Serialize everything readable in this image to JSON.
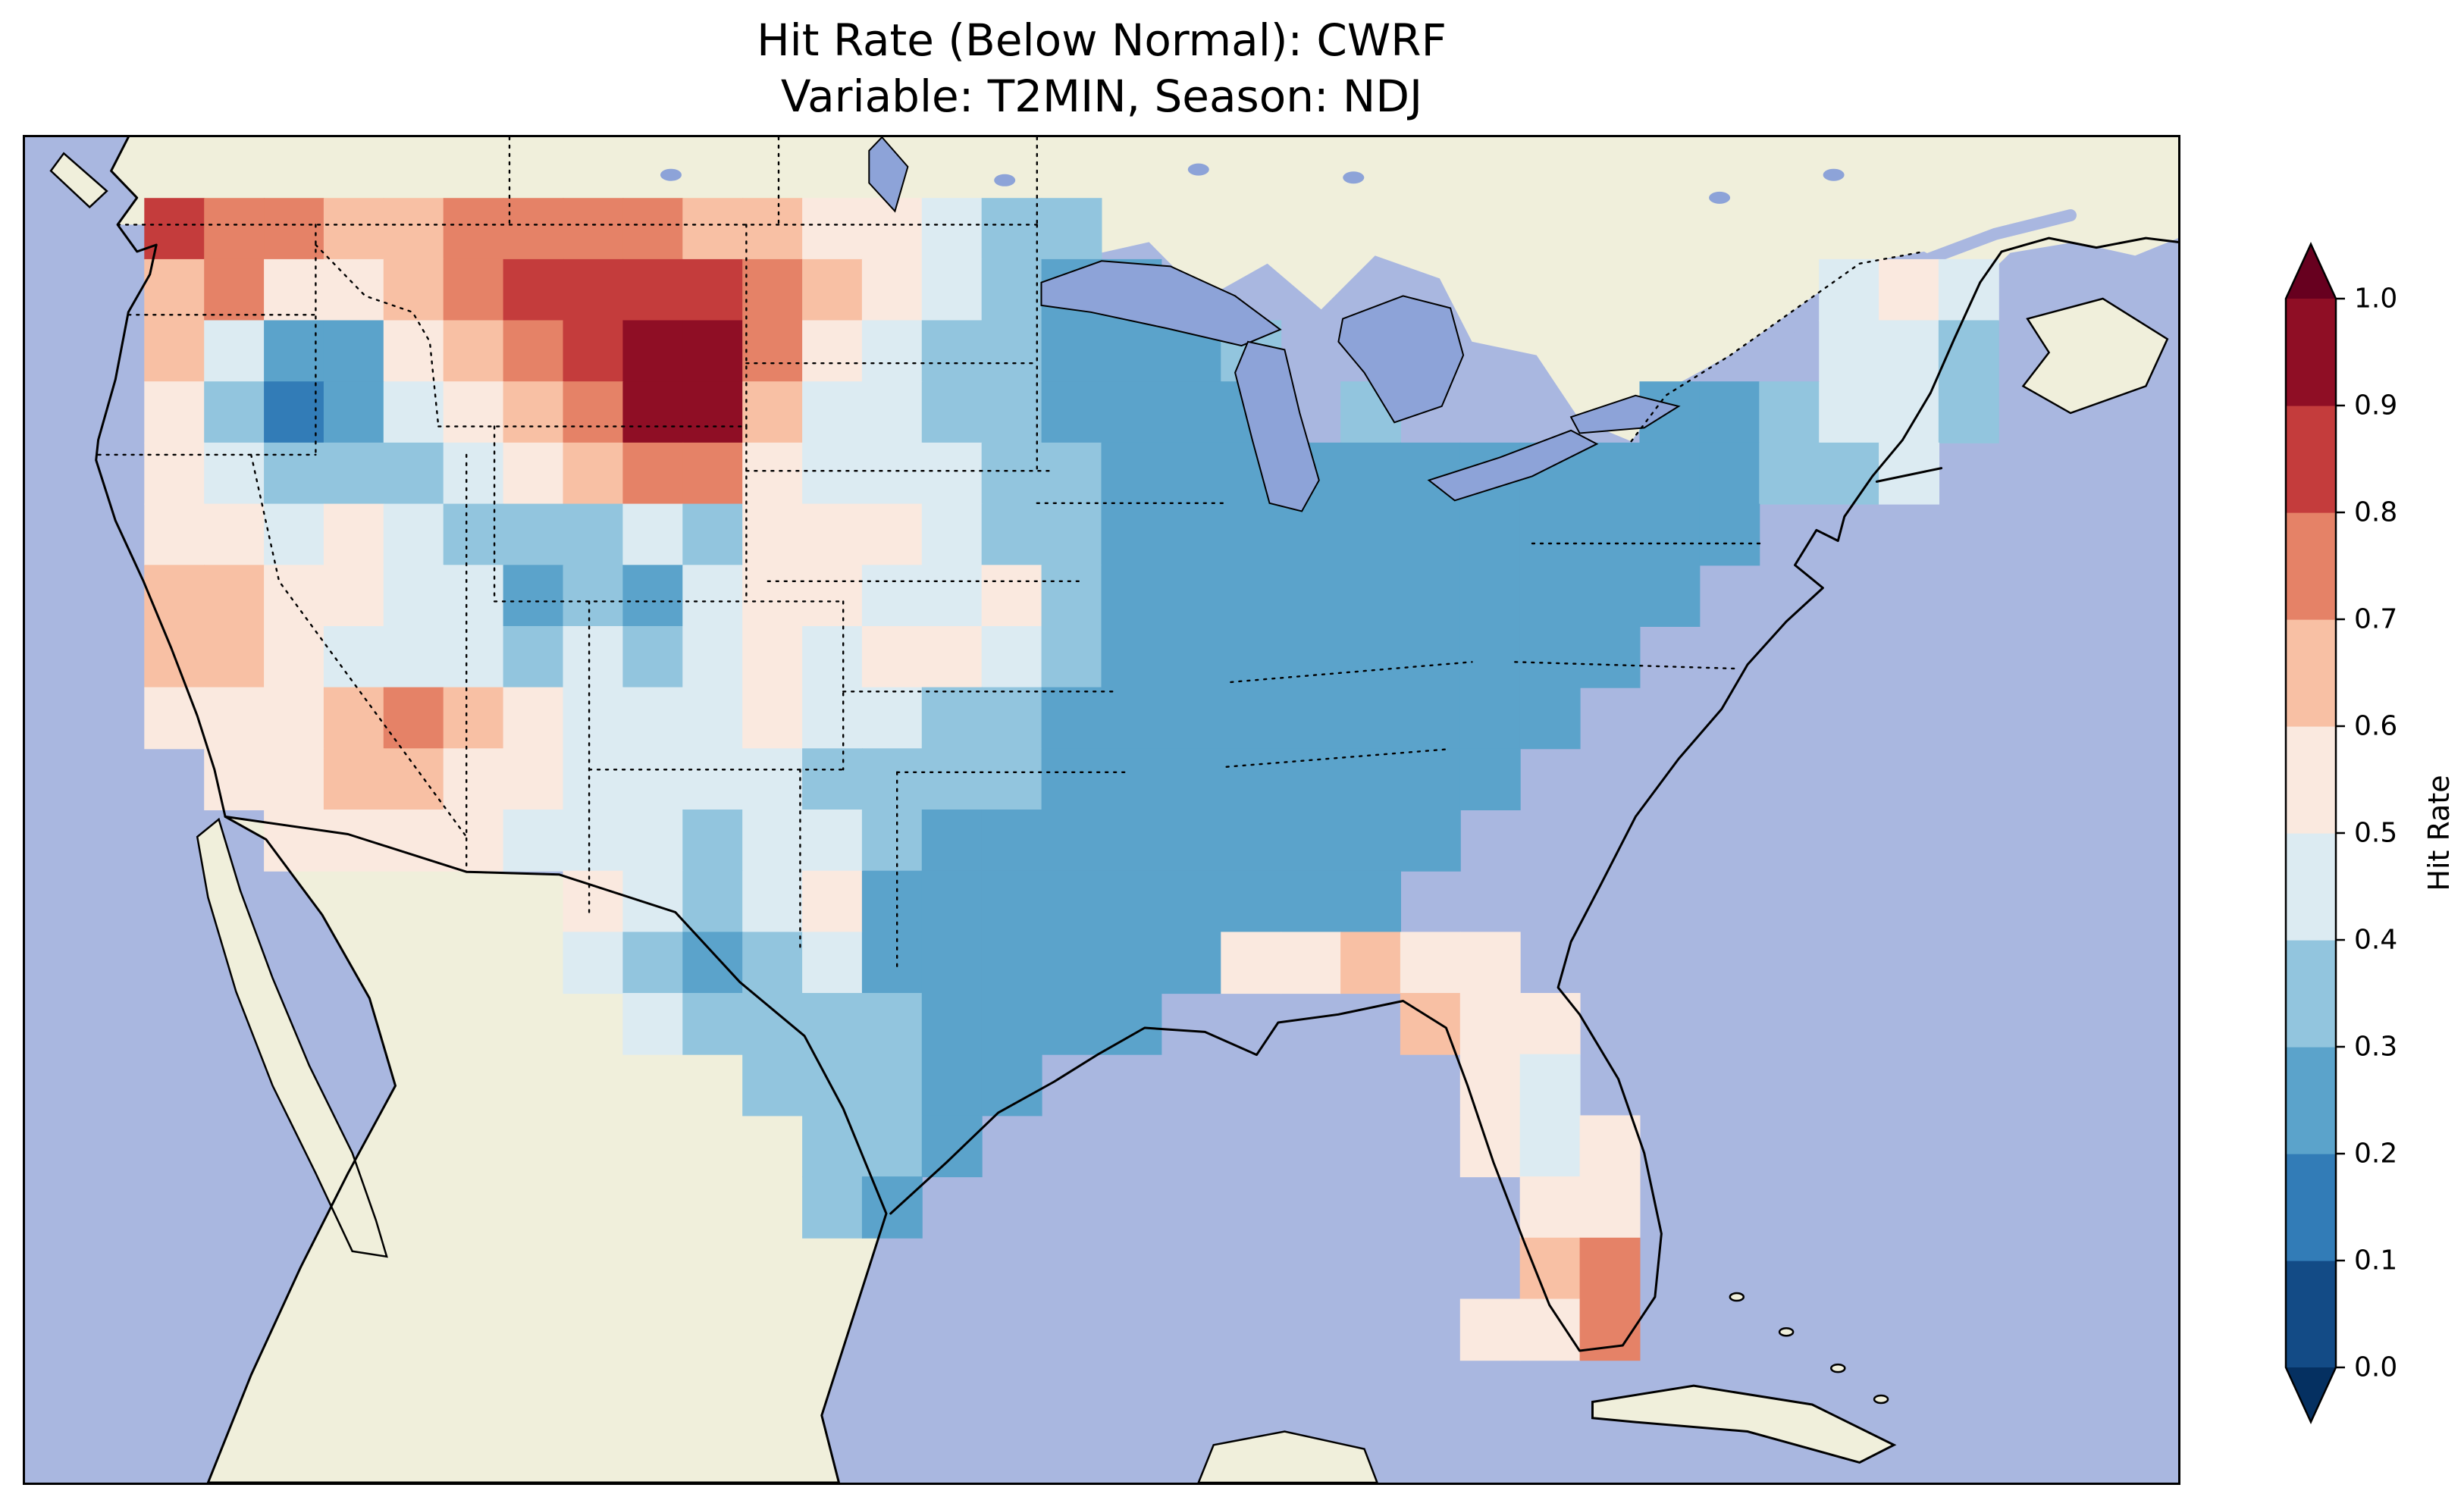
{
  "figure": {
    "title_line1": "Hit Rate (Below Normal): CWRF",
    "title_line2": "Variable: T2MIN, Season: NDJ"
  },
  "colorbar": {
    "label": "Hit Rate",
    "tick_labels": [
      "0.0",
      "0.1",
      "0.2",
      "0.3",
      "0.4",
      "0.5",
      "0.6",
      "0.7",
      "0.8",
      "0.9",
      "1.0"
    ],
    "min": 0.0,
    "max": 1.0,
    "extend": "both"
  },
  "map_colors": {
    "ocean": "#a9b7e0",
    "land": "#f0efdb",
    "lake": "#8da3d8",
    "coastline": "#000000"
  },
  "chart_data": {
    "type": "heatmap",
    "title": "Hit Rate (Below Normal): CWRF",
    "subtitle": "Variable: T2MIN, Season: NDJ",
    "metric": "Hit Rate (Below Normal)",
    "model": "CWRF",
    "variable": "T2MIN",
    "season": "NDJ",
    "region": "Contiguous United States (CONUS map with S. Canada / N. Mexico context)",
    "value_range": [
      0,
      1
    ],
    "bin_size": 0.1,
    "colormap": "RdBu_r (dark blue = low hit rate, dark red = high hit rate)",
    "bin_colors": [
      "#134b86",
      "#327cb7",
      "#5ba3cb",
      "#92c5de",
      "#dcebf2",
      "#fae9df",
      "#f8c0a4",
      "#e58267",
      "#c43c3c",
      "#8f0e25"
    ],
    "extend_colors": {
      "under": "#053061",
      "over": "#67001f"
    },
    "legend_position": "right vertical colorbar with pointed over/under extensions",
    "grid": {
      "ncols": 36,
      "nrows": 22,
      "cell_encoding": "each char is one grid cell: digit d means hit rate ~ (d+0.5)/10 ; '.' means outside USA / no data",
      "rows": [
        "....................................",
        "..8776677776655433..................",
        "..67556788887654322...........454...",
        "..6422567899754332223.........443...",
        "..5312456799644332222.3....223443...",
        "..543334567754443322222222222334....",
        "..554543334355543322222222222.......",
        "..66554423245544532222222222........",
        "..6654443434545543222222222.........",
        "..555676544454433222222222..........",
        "...5566554444333322222222...........",
        "....55554443443222222222............",
        ".........54345222222222.............",
        ".........4323422222255655...........",
        "..........433332222....655..........",
        "............33322.......54..........",
        ".............332........545.........",
        ".............32..........55.........",
        ".........................67.........",
        "........................557.........",
        "....................................",
        "...................................."
      ]
    },
    "regional_summary": [
      {
        "region": "Eastern, Midwestern and Southeastern US (Great Lakes to Gulf/Atlantic)",
        "hit_rate": "0.2-0.3 (blue)"
      },
      {
        "region": "Eastern Montana / western North Dakota core",
        "hit_rate": "0.9-1.0 (dark red)"
      },
      {
        "region": "Montana-Dakotas band and Pacific Northwest (WA, N Idaho)",
        "hit_rate": "0.7-0.9 (red)"
      },
      {
        "region": "Southwest (central Arizona spot), coastal California, Florida peninsula and tip",
        "hit_rate": "0.5-0.75 (pale pink to salmon)"
      },
      {
        "region": "Great Basin, Utah/Colorado patches, NE Oregon dark blue blob",
        "hit_rate": "0.15-0.45 (blues)"
      },
      {
        "region": "Texas",
        "hit_rate": "0.25-0.45 west, 0.2-0.3 east"
      }
    ]
  }
}
